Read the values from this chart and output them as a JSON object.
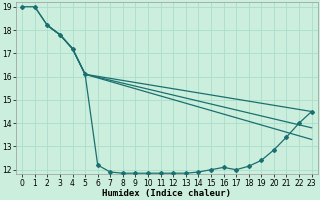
{
  "xlabel": "Humidex (Indice chaleur)",
  "ylabel": "",
  "bg_color": "#cceedd",
  "grid_color": "#aaddcc",
  "line_color": "#1a7070",
  "xlim": [
    -0.5,
    23.5
  ],
  "ylim": [
    11.8,
    19.2
  ],
  "xticks": [
    0,
    1,
    2,
    3,
    4,
    5,
    6,
    7,
    8,
    9,
    10,
    11,
    12,
    13,
    14,
    15,
    16,
    17,
    18,
    19,
    20,
    21,
    22,
    23
  ],
  "yticks": [
    12,
    13,
    14,
    15,
    16,
    17,
    18,
    19
  ],
  "series": [
    {
      "x": [
        0,
        1,
        2,
        3,
        4,
        5,
        6,
        7,
        8,
        9,
        10,
        11,
        12,
        13,
        14,
        15,
        16,
        17,
        18,
        19,
        20,
        21,
        22,
        23
      ],
      "y": [
        19.0,
        19.0,
        18.2,
        17.8,
        17.2,
        16.1,
        12.2,
        11.9,
        11.85,
        11.85,
        11.85,
        11.85,
        11.85,
        11.85,
        11.9,
        12.0,
        12.1,
        12.0,
        12.15,
        12.4,
        12.85,
        13.4,
        14.0,
        14.5
      ],
      "has_markers": true
    },
    {
      "x": [
        1,
        2,
        3,
        4,
        5,
        23
      ],
      "y": [
        19.0,
        18.2,
        17.8,
        17.2,
        16.1,
        14.5
      ],
      "has_markers": false
    },
    {
      "x": [
        2,
        3,
        4,
        5,
        23
      ],
      "y": [
        18.2,
        17.8,
        17.2,
        16.1,
        13.8
      ],
      "has_markers": false
    },
    {
      "x": [
        2,
        3,
        4,
        5,
        23
      ],
      "y": [
        18.2,
        17.8,
        17.2,
        16.1,
        13.3
      ],
      "has_markers": false
    }
  ]
}
